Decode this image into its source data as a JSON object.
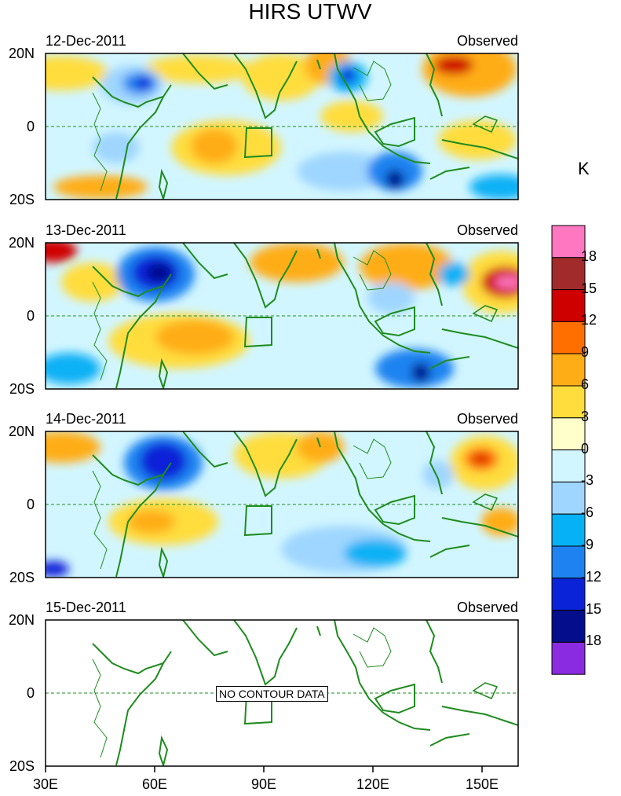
{
  "title": "HIRS UTWV",
  "unit": "K",
  "lat_labels": [
    "20N",
    "0",
    "20S"
  ],
  "lon_labels": [
    "30E",
    "60E",
    "90E",
    "120E",
    "150E"
  ],
  "panels": [
    {
      "date": "12-Dec-2011",
      "tag": "Observed",
      "has_data": true
    },
    {
      "date": "13-Dec-2011",
      "tag": "Observed",
      "has_data": true
    },
    {
      "date": "14-Dec-2011",
      "tag": "Observed",
      "has_data": true
    },
    {
      "date": "15-Dec-2011",
      "tag": "Observed",
      "has_data": false,
      "message": "NO CONTOUR DATA"
    }
  ],
  "colorbar": {
    "labels": [
      "18",
      "15",
      "12",
      "9",
      "6",
      "3",
      "0",
      "-3",
      "-6",
      "-9",
      "-12",
      "-15",
      "-18"
    ],
    "colors": [
      "#ff77c0",
      "#a12a2a",
      "#cf0000",
      "#ff6f00",
      "#ffad17",
      "#ffdd3c",
      "#ffffcc",
      "#d2f6ff",
      "#9fd6ff",
      "#07b1f5",
      "#1e83f0",
      "#0b23d8",
      "#040d8c",
      "#8a2be2"
    ]
  }
}
